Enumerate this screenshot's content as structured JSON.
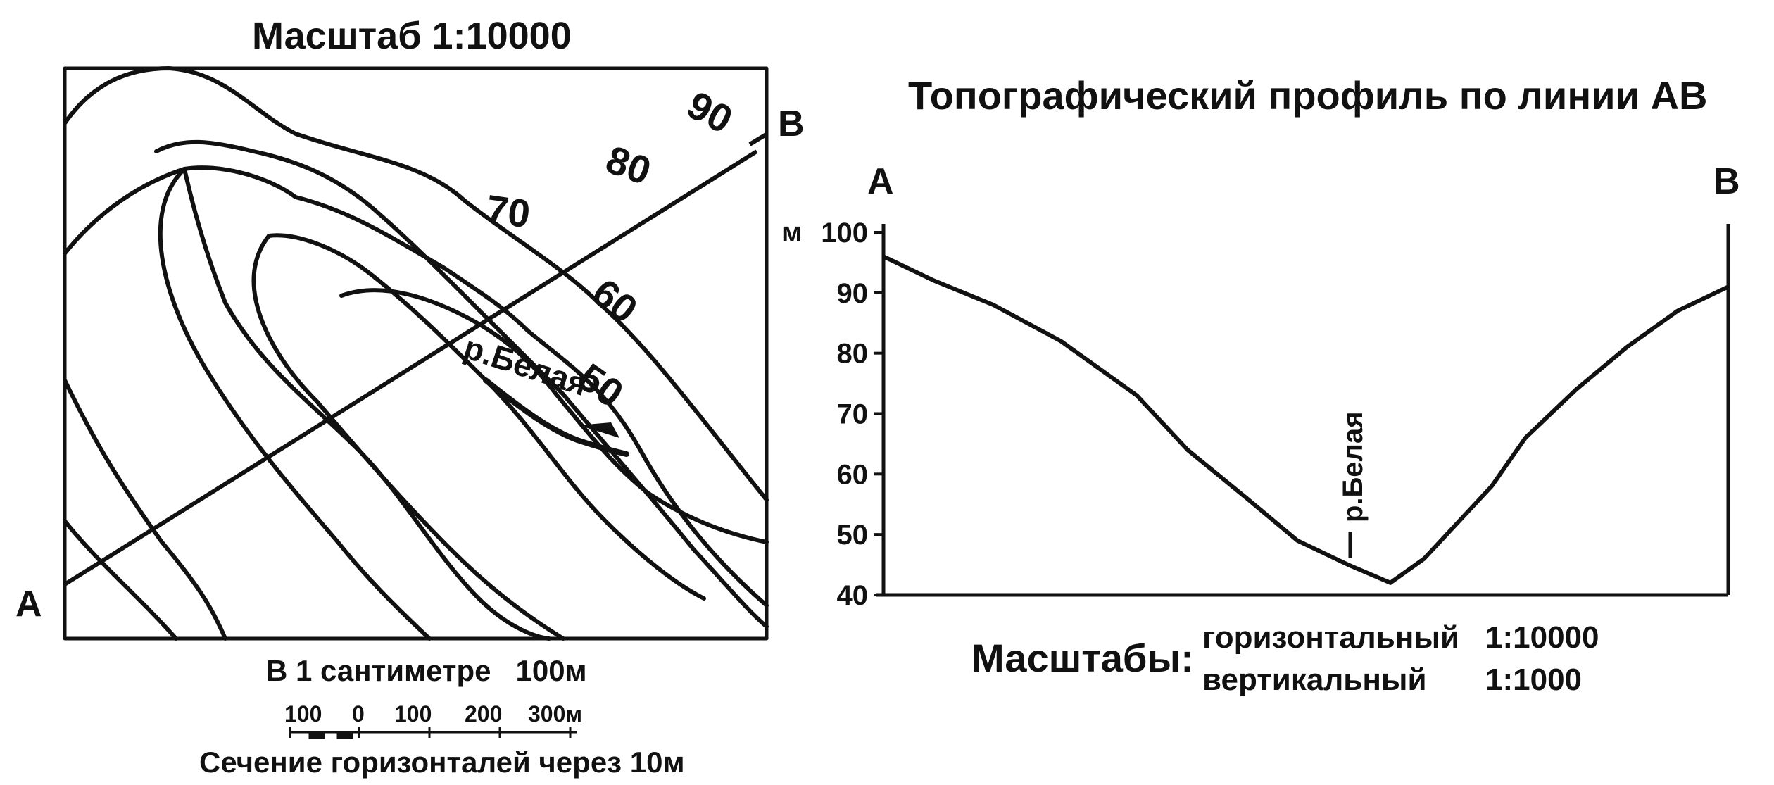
{
  "map": {
    "scale_title": "Масштаб 1:10000",
    "point_a": "A",
    "point_b": "B",
    "contour_labels": [
      "90",
      "80",
      "70",
      "60",
      "50"
    ],
    "river_label": "р.Белая",
    "scale_text": "В 1 сантиметре   100м",
    "scale_bar_labels": [
      "100",
      "0",
      "100",
      "200",
      "300м"
    ],
    "contour_interval": "Сечение горизонталей через 10м"
  },
  "profile": {
    "title": "Топографический профиль по линии АВ",
    "point_a": "А",
    "point_b": "В",
    "unit": "м",
    "river_label": "р.Белая",
    "scales_label": "Масштабы:",
    "horizontal_label": "горизонтальный",
    "horizontal_value": "1:10000",
    "vertical_label": "вертикальный",
    "vertical_value": "1:1000"
  },
  "chart_data": {
    "type": "line",
    "title": "Топографический профиль по линии АВ",
    "ylabel": "м",
    "ylim": [
      40,
      100
    ],
    "yticks": [
      100,
      90,
      80,
      70,
      60,
      50,
      40
    ],
    "series": [
      {
        "x": [
          0,
          0.06,
          0.13,
          0.21,
          0.3,
          0.36,
          0.43,
          0.49,
          0.55,
          0.6,
          0.64,
          0.68,
          0.72,
          0.76,
          0.82,
          0.88,
          0.94,
          1.0
        ],
        "values": [
          96,
          92,
          88,
          82,
          73,
          64,
          56,
          49,
          45,
          42,
          46,
          52,
          58,
          66,
          74,
          81,
          87,
          91
        ]
      }
    ]
  }
}
